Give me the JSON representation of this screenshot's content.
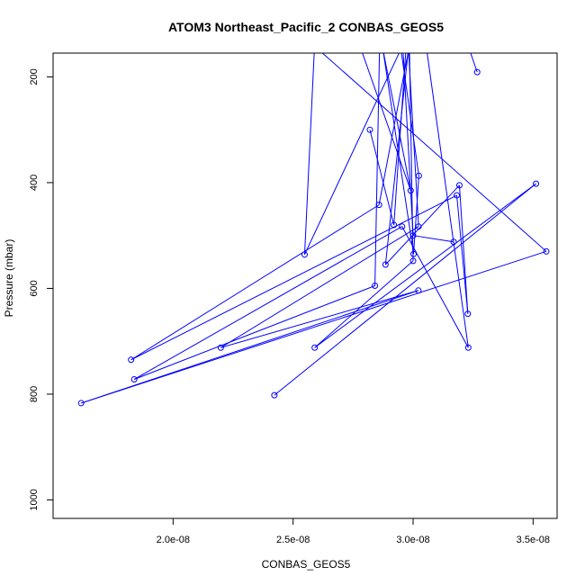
{
  "chart_data": {
    "type": "line",
    "title": "ATOM3 Northeast_Pacific_2 CONBAS_GEOS5",
    "xlabel": "CONBAS_GEOS5",
    "ylabel": "Pressure (mbar)",
    "xlim": [
      1.5e-08,
      3.6e-08
    ],
    "ylim": [
      1035,
      155
    ],
    "y_inverted": true,
    "grid": false,
    "series_color": "#0000ff",
    "x_ticks": [
      {
        "value": 2e-08,
        "label": "2.0e-08"
      },
      {
        "value": 2.5e-08,
        "label": "2.5e-08"
      },
      {
        "value": 3e-08,
        "label": "3.0e-08"
      },
      {
        "value": 3.5e-08,
        "label": "3.5e-08"
      }
    ],
    "y_ticks": [
      {
        "value": 200,
        "label": "200"
      },
      {
        "value": 400,
        "label": "400"
      },
      {
        "value": 600,
        "label": "600"
      },
      {
        "value": 800,
        "label": "800"
      },
      {
        "value": 1000,
        "label": "1000"
      }
    ],
    "series": [
      {
        "x": [
          2.61e-08,
          3.555e-08,
          1.617e-08,
          3.022e-08,
          2.199e-08,
          3.023e-08,
          2.981e-08,
          2.858e-08,
          1.825e-08,
          3.182e-08,
          3.228e-08,
          3.193e-08,
          2.885e-08,
          2.98e-08,
          3.057e-08,
          3.23e-08,
          2.954e-08,
          1.838e-08,
          2.841e-08,
          2.86e-08,
          2.985e-08,
          3e-08,
          2.59e-08,
          3.512e-08,
          2.422e-08
        ],
        "y": [
          150,
          530,
          817,
          604,
          712,
          483,
          150,
          442,
          735,
          424,
          648,
          405,
          555,
          150,
          150,
          712,
          483,
          772,
          595,
          150,
          150,
          548,
          712,
          402,
          802
        ]
      },
      {
        "x": [
          3.267e-08,
          3.236e-08,
          3.2e-08
        ],
        "y": [
          191,
          150,
          80
        ]
      },
      {
        "x": [
          2.6e-08,
          2.548e-08,
          2.957e-08,
          3e-08,
          3.169e-08
        ],
        "y": [
          40,
          536,
          140,
          500,
          512
        ]
      },
      {
        "x": [
          2.7e-08,
          2.99e-08,
          2.875e-08,
          3.002e-08,
          3.024e-08,
          2.95e-08
        ],
        "y": [
          40,
          415,
          150,
          535,
          387,
          150
        ]
      },
      {
        "x": [
          2.82e-08,
          2.92e-08,
          2.97e-08
        ],
        "y": [
          300,
          480,
          150
        ]
      }
    ]
  }
}
